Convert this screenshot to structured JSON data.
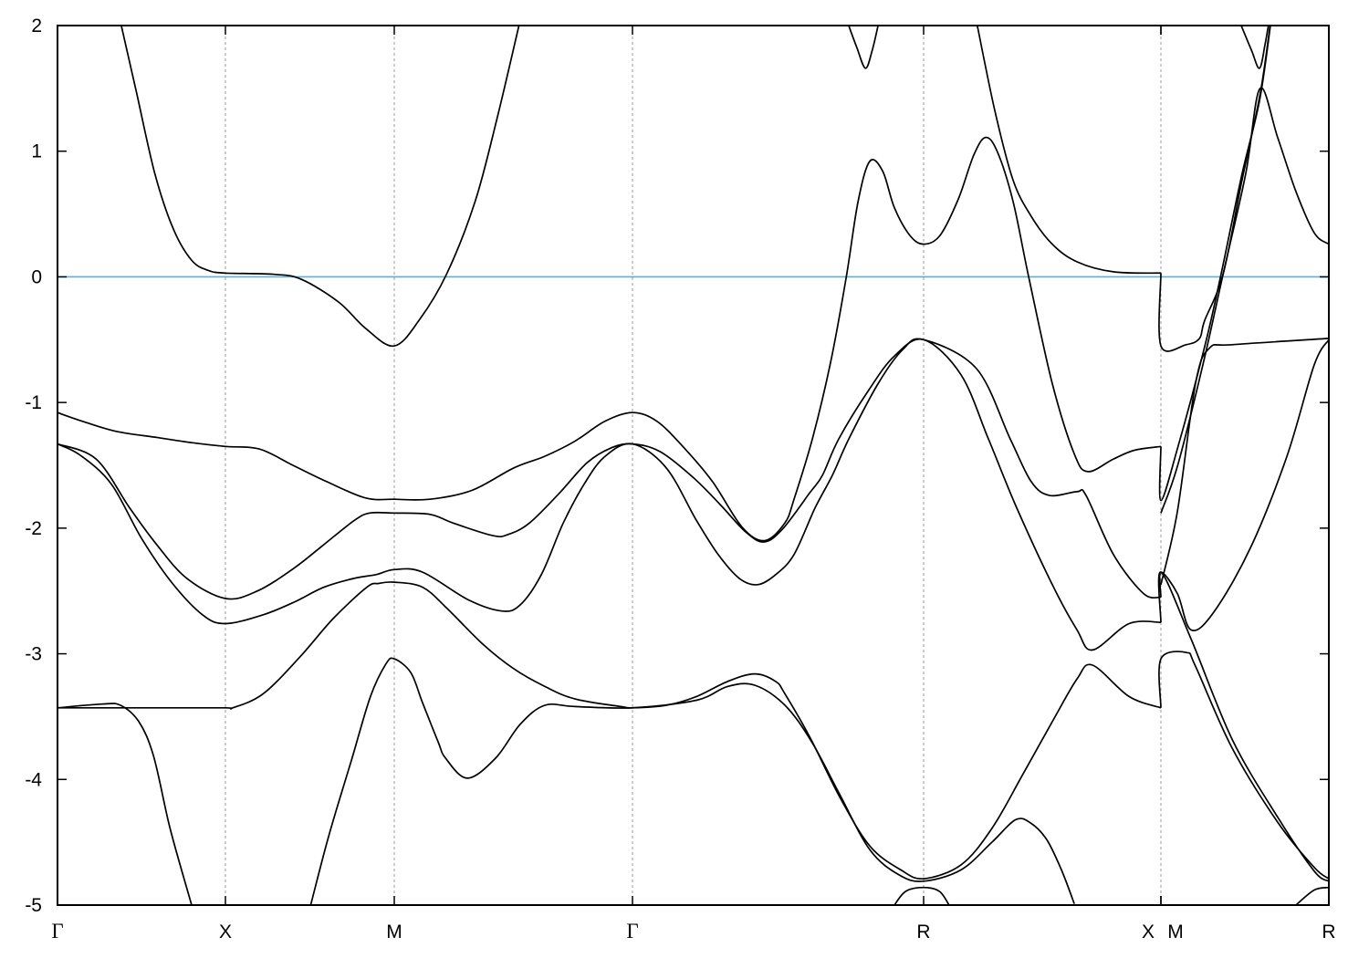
{
  "chart_data": {
    "type": "line",
    "title": "",
    "xlabel": "",
    "ylabel": "",
    "ylim": [
      -5,
      2
    ],
    "xlim": [
      0,
      7.56
    ],
    "grid": "dotted vertical lines at high-symmetry points",
    "yticks": [
      2,
      1,
      0,
      -1,
      -2,
      -3,
      -4,
      -5
    ],
    "ytick_labels": [
      "2",
      "1",
      "0",
      "-1",
      "-2",
      "-3",
      "-4",
      "-5"
    ],
    "xticks": [
      {
        "label": "Γ",
        "k": 0
      },
      {
        "label": "X",
        "k": 1
      },
      {
        "label": "M",
        "k": 2
      },
      {
        "label": "Γ",
        "k": 3.414
      },
      {
        "label": "R",
        "k": 5.146
      },
      {
        "label": "X",
        "k": 6.56
      },
      {
        "label": "M",
        "k": 6.56
      },
      {
        "label": "R",
        "k": 7.56
      }
    ],
    "fermi_level": {
      "value": 0,
      "color": "#4fb3e8"
    },
    "band_color": "#000000",
    "bands": [
      [
        [
          0.38,
          2
        ],
        [
          0.47,
          1.47
        ],
        [
          0.58,
          0.82
        ],
        [
          0.69,
          0.38
        ],
        [
          0.8,
          0.13
        ],
        [
          0.9,
          0.05
        ],
        [
          1.0,
          0.03
        ],
        [
          1.29,
          0.02
        ],
        [
          1.45,
          -0.02
        ],
        [
          1.67,
          -0.2
        ],
        [
          1.83,
          -0.41
        ],
        [
          2.0,
          -0.55
        ],
        [
          2.15,
          -0.34
        ],
        [
          2.31,
          0.02
        ],
        [
          2.48,
          0.6
        ],
        [
          2.61,
          1.26
        ],
        [
          2.74,
          2
        ]
      ],
      [
        [
          0,
          -1.08
        ],
        [
          0.15,
          -1.15
        ],
        [
          0.35,
          -1.23
        ],
        [
          0.6,
          -1.28
        ],
        [
          0.8,
          -1.32
        ],
        [
          1.0,
          -1.35
        ],
        [
          1.2,
          -1.37
        ],
        [
          1.4,
          -1.5
        ],
        [
          1.6,
          -1.63
        ],
        [
          1.83,
          -1.76
        ],
        [
          2.0,
          -1.77
        ],
        [
          2.21,
          -1.77
        ],
        [
          2.46,
          -1.7
        ],
        [
          2.71,
          -1.52
        ],
        [
          2.89,
          -1.43
        ],
        [
          3.07,
          -1.31
        ],
        [
          3.25,
          -1.15
        ],
        [
          3.414,
          -1.08
        ],
        [
          3.56,
          -1.15
        ],
        [
          3.72,
          -1.36
        ],
        [
          3.89,
          -1.63
        ],
        [
          4.065,
          -1.99
        ],
        [
          4.2,
          -2.1
        ],
        [
          4.32,
          -1.96
        ],
        [
          4.375,
          -1.77
        ],
        [
          4.484,
          -1.29
        ],
        [
          4.593,
          -0.68
        ],
        [
          4.686,
          0
        ],
        [
          4.756,
          0.6
        ],
        [
          4.826,
          0.92
        ],
        [
          4.903,
          0.84
        ],
        [
          4.972,
          0.55
        ],
        [
          5.064,
          0.33
        ],
        [
          5.146,
          0.26
        ],
        [
          5.244,
          0.33
        ],
        [
          5.353,
          0.62
        ],
        [
          5.445,
          0.97
        ],
        [
          5.516,
          1.11
        ],
        [
          5.587,
          0.99
        ],
        [
          5.679,
          0.6
        ],
        [
          5.772,
          0
        ],
        [
          5.913,
          -0.85
        ],
        [
          6.044,
          -1.41
        ],
        [
          6.125,
          -1.55
        ],
        [
          6.277,
          -1.45
        ],
        [
          6.402,
          -1.38
        ],
        [
          6.56,
          -1.35
        ]
      ],
      [
        [
          0,
          -1.33
        ],
        [
          0.23,
          -1.45
        ],
        [
          0.43,
          -1.84
        ],
        [
          0.59,
          -2.13
        ],
        [
          0.77,
          -2.4
        ],
        [
          1.0,
          -2.56
        ],
        [
          1.19,
          -2.5
        ],
        [
          1.405,
          -2.32
        ],
        [
          1.584,
          -2.13
        ],
        [
          1.762,
          -1.94
        ],
        [
          1.854,
          -1.88
        ],
        [
          2.0,
          -1.88
        ],
        [
          2.21,
          -1.89
        ],
        [
          2.35,
          -1.96
        ],
        [
          2.586,
          -2.06
        ],
        [
          2.677,
          -2.05
        ],
        [
          2.802,
          -1.96
        ],
        [
          2.981,
          -1.72
        ],
        [
          3.144,
          -1.48
        ],
        [
          3.29,
          -1.36
        ],
        [
          3.414,
          -1.33
        ],
        [
          3.577,
          -1.39
        ],
        [
          3.778,
          -1.6
        ],
        [
          3.941,
          -1.82
        ],
        [
          4.087,
          -2.03
        ],
        [
          4.196,
          -2.11
        ],
        [
          4.305,
          -2.01
        ],
        [
          4.468,
          -1.72
        ],
        [
          4.544,
          -1.58
        ],
        [
          4.641,
          -1.29
        ],
        [
          4.82,
          -0.9
        ],
        [
          4.972,
          -0.63
        ],
        [
          5.146,
          -0.5
        ],
        [
          5.369,
          -0.78
        ],
        [
          5.532,
          -1.29
        ],
        [
          5.695,
          -1.82
        ],
        [
          5.913,
          -2.45
        ],
        [
          6.06,
          -2.81
        ],
        [
          6.152,
          -2.97
        ],
        [
          6.37,
          -2.76
        ],
        [
          6.56,
          -2.75
        ]
      ],
      [
        [
          0,
          -1.33
        ],
        [
          0.136,
          -1.42
        ],
        [
          0.321,
          -1.65
        ],
        [
          0.5,
          -2.08
        ],
        [
          0.679,
          -2.43
        ],
        [
          0.864,
          -2.69
        ],
        [
          1.0,
          -2.76
        ],
        [
          1.222,
          -2.69
        ],
        [
          1.405,
          -2.59
        ],
        [
          1.584,
          -2.47
        ],
        [
          1.762,
          -2.4
        ],
        [
          1.892,
          -2.37
        ],
        [
          2.0,
          -2.33
        ],
        [
          2.168,
          -2.35
        ],
        [
          2.439,
          -2.57
        ],
        [
          2.639,
          -2.66
        ],
        [
          2.748,
          -2.61
        ],
        [
          2.873,
          -2.37
        ],
        [
          3.003,
          -1.96
        ],
        [
          3.127,
          -1.65
        ],
        [
          3.25,
          -1.43
        ],
        [
          3.414,
          -1.33
        ],
        [
          3.615,
          -1.52
        ],
        [
          3.795,
          -1.94
        ],
        [
          3.924,
          -2.21
        ],
        [
          4.049,
          -2.4
        ],
        [
          4.158,
          -2.45
        ],
        [
          4.266,
          -2.37
        ],
        [
          4.375,
          -2.21
        ],
        [
          4.5,
          -1.84
        ],
        [
          4.603,
          -1.58
        ],
        [
          4.701,
          -1.29
        ],
        [
          4.875,
          -0.85
        ],
        [
          5.021,
          -0.58
        ],
        [
          5.146,
          -0.5
        ],
        [
          5.461,
          -0.73
        ],
        [
          5.662,
          -1.29
        ],
        [
          5.787,
          -1.63
        ],
        [
          5.897,
          -1.74
        ],
        [
          6.06,
          -1.71
        ],
        [
          6.114,
          -1.74
        ],
        [
          6.277,
          -2.21
        ],
        [
          6.456,
          -2.52
        ],
        [
          6.56,
          -2.55
        ]
      ],
      [
        [
          0,
          -3.43
        ],
        [
          0.6,
          -3.43
        ],
        [
          1.0,
          -3.43
        ],
        [
          1.043,
          -3.43
        ],
        [
          1.222,
          -3.32
        ],
        [
          1.438,
          -3.03
        ],
        [
          1.638,
          -2.72
        ],
        [
          1.838,
          -2.47
        ],
        [
          1.908,
          -2.44
        ],
        [
          2.0,
          -2.43
        ],
        [
          2.168,
          -2.47
        ],
        [
          2.314,
          -2.64
        ],
        [
          2.531,
          -2.93
        ],
        [
          2.71,
          -3.12
        ],
        [
          2.894,
          -3.26
        ],
        [
          3.073,
          -3.36
        ],
        [
          3.344,
          -3.42
        ],
        [
          3.414,
          -3.43
        ],
        [
          3.615,
          -3.41
        ],
        [
          3.795,
          -3.34
        ],
        [
          3.98,
          -3.22
        ],
        [
          4.141,
          -3.16
        ],
        [
          4.266,
          -3.22
        ],
        [
          4.321,
          -3.32
        ],
        [
          4.468,
          -3.66
        ],
        [
          4.647,
          -4.14
        ],
        [
          4.826,
          -4.53
        ],
        [
          5.01,
          -4.72
        ],
        [
          5.146,
          -4.79
        ],
        [
          5.369,
          -4.68
        ],
        [
          5.553,
          -4.39
        ],
        [
          5.733,
          -3.97
        ],
        [
          5.913,
          -3.54
        ],
        [
          6.06,
          -3.2
        ],
        [
          6.152,
          -3.09
        ],
        [
          6.37,
          -3.34
        ],
        [
          6.56,
          -3.43
        ]
      ],
      [
        [
          0,
          -3.43
        ],
        [
          0.266,
          -3.4
        ],
        [
          0.375,
          -3.41
        ],
        [
          0.484,
          -3.54
        ],
        [
          0.571,
          -3.81
        ],
        [
          0.663,
          -4.35
        ],
        [
          0.745,
          -4.75
        ],
        [
          0.799,
          -5
        ]
      ],
      [
        [
          1.505,
          -5
        ],
        [
          1.614,
          -4.44
        ],
        [
          1.75,
          -3.83
        ],
        [
          1.859,
          -3.34
        ],
        [
          1.951,
          -3.08
        ],
        [
          2.0,
          -3.04
        ],
        [
          2.098,
          -3.15
        ],
        [
          2.168,
          -3.39
        ],
        [
          2.26,
          -3.7
        ],
        [
          2.304,
          -3.83
        ],
        [
          2.434,
          -3.99
        ],
        [
          2.602,
          -3.83
        ],
        [
          2.748,
          -3.56
        ],
        [
          2.894,
          -3.41
        ],
        [
          3.073,
          -3.42
        ],
        [
          3.414,
          -3.43
        ],
        [
          3.795,
          -3.37
        ],
        [
          3.98,
          -3.26
        ],
        [
          4.141,
          -3.25
        ],
        [
          4.321,
          -3.41
        ],
        [
          4.48,
          -3.7
        ],
        [
          4.647,
          -4.12
        ],
        [
          4.826,
          -4.56
        ],
        [
          5.0,
          -4.76
        ],
        [
          5.146,
          -4.81
        ],
        [
          5.369,
          -4.72
        ],
        [
          5.553,
          -4.5
        ],
        [
          5.695,
          -4.32
        ],
        [
          5.787,
          -4.35
        ],
        [
          5.88,
          -4.48
        ],
        [
          5.967,
          -4.72
        ],
        [
          6.044,
          -4.99
        ]
      ],
      [
        [
          4.7,
          2
        ],
        [
          4.75,
          1.82
        ],
        [
          4.8,
          1.66
        ],
        [
          4.84,
          1.8
        ],
        [
          4.875,
          2
        ]
      ],
      [
        [
          4.972,
          -5
        ],
        [
          5.04,
          -4.89
        ],
        [
          5.146,
          -4.86
        ],
        [
          5.24,
          -4.89
        ],
        [
          5.298,
          -5
        ]
      ],
      [
        [
          5.466,
          2
        ],
        [
          5.569,
          1.33
        ],
        [
          5.679,
          0.77
        ],
        [
          5.788,
          0.48
        ],
        [
          5.913,
          0.26
        ],
        [
          6.059,
          0.12
        ],
        [
          6.277,
          0.04
        ],
        [
          6.56,
          0.03
        ]
      ],
      [
        [
          6.56,
          0.03
        ],
        [
          6.56,
          -0.55
        ],
        [
          6.71,
          -0.54
        ],
        [
          6.79,
          -0.49
        ],
        [
          6.82,
          -0.35
        ],
        [
          6.93,
          0.02
        ],
        [
          7.04,
          0.75
        ],
        [
          7.15,
          1.45
        ],
        [
          7.21,
          2
        ]
      ],
      [
        [
          6.56,
          -1.35
        ],
        [
          6.56,
          -1.78
        ],
        [
          6.66,
          -1.36
        ],
        [
          6.82,
          -0.56
        ],
        [
          6.918,
          0.02
        ],
        [
          7.04,
          0.8
        ],
        [
          7.147,
          1.4
        ],
        [
          7.212,
          2
        ]
      ],
      [
        [
          6.56,
          -1.88
        ],
        [
          6.66,
          -1.5
        ],
        [
          6.81,
          -0.7
        ],
        [
          6.93,
          0.02
        ],
        [
          7.065,
          0.82
        ],
        [
          7.15,
          1.5
        ],
        [
          7.255,
          1.11
        ],
        [
          7.364,
          0.68
        ],
        [
          7.473,
          0.35
        ],
        [
          7.56,
          0.26
        ]
      ],
      [
        [
          7.038,
          2
        ],
        [
          7.1,
          1.8
        ],
        [
          7.147,
          1.66
        ],
        [
          7.18,
          1.85
        ],
        [
          7.2,
          2
        ]
      ],
      [
        [
          6.56,
          -2.55
        ],
        [
          6.56,
          -2.35
        ],
        [
          6.658,
          -2.52
        ],
        [
          6.739,
          -2.81
        ],
        [
          6.874,
          -2.67
        ],
        [
          7.092,
          -2.16
        ],
        [
          7.31,
          -1.43
        ],
        [
          7.473,
          -0.7
        ],
        [
          7.56,
          -0.5
        ]
      ],
      [
        [
          6.56,
          -2.45
        ],
        [
          6.658,
          -1.87
        ],
        [
          6.766,
          -0.85
        ],
        [
          6.847,
          -0.57
        ],
        [
          6.984,
          -0.54
        ],
        [
          7.56,
          -0.49
        ]
      ],
      [
        [
          6.56,
          -3.43
        ],
        [
          6.56,
          -3.04
        ],
        [
          6.712,
          -2.99
        ],
        [
          6.766,
          -3.1
        ],
        [
          6.984,
          -3.75
        ],
        [
          7.255,
          -4.34
        ],
        [
          7.473,
          -4.7
        ],
        [
          7.56,
          -4.79
        ]
      ],
      [
        [
          6.56,
          -2.75
        ],
        [
          6.56,
          -2.35
        ],
        [
          6.739,
          -2.88
        ],
        [
          6.984,
          -3.68
        ],
        [
          7.255,
          -4.3
        ],
        [
          7.473,
          -4.73
        ],
        [
          7.56,
          -4.81
        ]
      ],
      [
        [
          7.364,
          -5
        ],
        [
          7.473,
          -4.88
        ],
        [
          7.56,
          -4.86
        ]
      ]
    ]
  }
}
